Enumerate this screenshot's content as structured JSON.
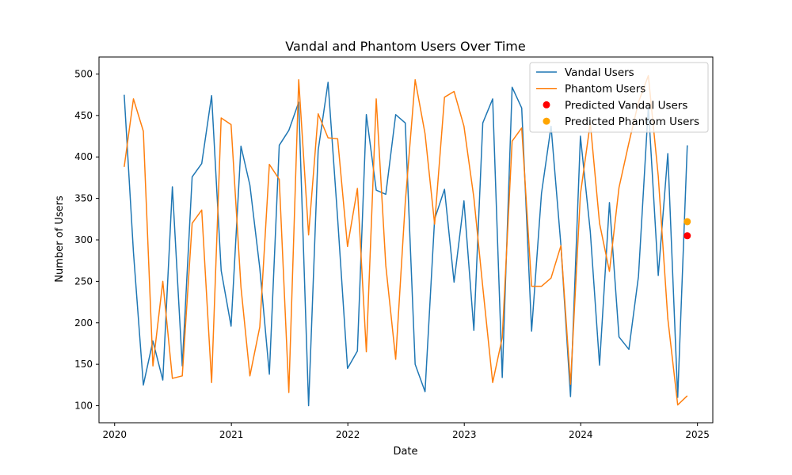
{
  "chart_data": {
    "type": "line",
    "title": "Vandal and Phantom Users Over Time",
    "xlabel": "Date",
    "ylabel": "Number of Users",
    "xlim": [
      "2019-11-13",
      "2025-02-18"
    ],
    "ylim": [
      79.5,
      520.5
    ],
    "x_ticks": [
      "2020-01-01",
      "2021-01-01",
      "2022-01-01",
      "2023-01-01",
      "2024-01-01",
      "2025-01-01"
    ],
    "x_tick_labels": [
      "2020",
      "2021",
      "2022",
      "2023",
      "2024",
      "2025"
    ],
    "y_ticks": [
      100,
      150,
      200,
      250,
      300,
      350,
      400,
      450,
      500
    ],
    "grid": false,
    "legend_position": "top-right",
    "x": [
      "2020-01-31",
      "2020-02-29",
      "2020-03-31",
      "2020-04-30",
      "2020-05-31",
      "2020-06-30",
      "2020-07-31",
      "2020-08-31",
      "2020-09-30",
      "2020-10-31",
      "2020-11-30",
      "2020-12-31",
      "2021-01-31",
      "2021-02-28",
      "2021-03-31",
      "2021-04-30",
      "2021-05-31",
      "2021-06-30",
      "2021-07-31",
      "2021-08-31",
      "2021-09-30",
      "2021-10-31",
      "2021-11-30",
      "2021-12-31",
      "2022-01-31",
      "2022-02-28",
      "2022-03-31",
      "2022-04-30",
      "2022-05-31",
      "2022-06-30",
      "2022-07-31",
      "2022-08-31",
      "2022-09-30",
      "2022-10-31",
      "2022-11-30",
      "2022-12-31",
      "2023-01-31",
      "2023-02-28",
      "2023-03-31",
      "2023-04-30",
      "2023-05-31",
      "2023-06-30",
      "2023-07-31",
      "2023-08-31",
      "2023-09-30",
      "2023-10-31",
      "2023-11-30",
      "2023-12-31",
      "2024-01-31",
      "2024-02-29",
      "2024-03-31",
      "2024-04-30",
      "2024-05-31",
      "2024-06-30",
      "2024-07-31",
      "2024-08-31",
      "2024-09-30",
      "2024-10-31",
      "2024-11-30"
    ],
    "series": [
      {
        "name": "Vandal Users",
        "color": "#1f77b4",
        "values": [
          475,
          285,
          125,
          178,
          131,
          364,
          148,
          376,
          392,
          474,
          263,
          196,
          413,
          366,
          266,
          138,
          414,
          432,
          466,
          100,
          408,
          490,
          326,
          145,
          166,
          451,
          360,
          355,
          451,
          441,
          150,
          117,
          325,
          361,
          249,
          347,
          191,
          441,
          470,
          134,
          484,
          459,
          190,
          356,
          437,
          293,
          111,
          425,
          310,
          149,
          345,
          183,
          168,
          256,
          461,
          257,
          404,
          110,
          414
        ]
      },
      {
        "name": "Phantom Users",
        "color": "#ff7f0e",
        "values": [
          388,
          470,
          431,
          148,
          250,
          133,
          136,
          320,
          336,
          128,
          447,
          439,
          243,
          136,
          195,
          391,
          373,
          116,
          493,
          306,
          452,
          423,
          422,
          292,
          362,
          165,
          470,
          269,
          156,
          345,
          493,
          428,
          319,
          472,
          479,
          437,
          351,
          243,
          128,
          182,
          419,
          435,
          244,
          244,
          254,
          293,
          126,
          355,
          441,
          320,
          262,
          363,
          417,
          466,
          498,
          377,
          205,
          101,
          112
        ]
      }
    ],
    "predictions": [
      {
        "name": "Predicted Vandal Users",
        "color": "#ff0000",
        "x": "2024-11-30",
        "y": 305
      },
      {
        "name": "Predicted Phantom Users",
        "color": "#ffa500",
        "x": "2024-11-30",
        "y": 322
      }
    ]
  }
}
